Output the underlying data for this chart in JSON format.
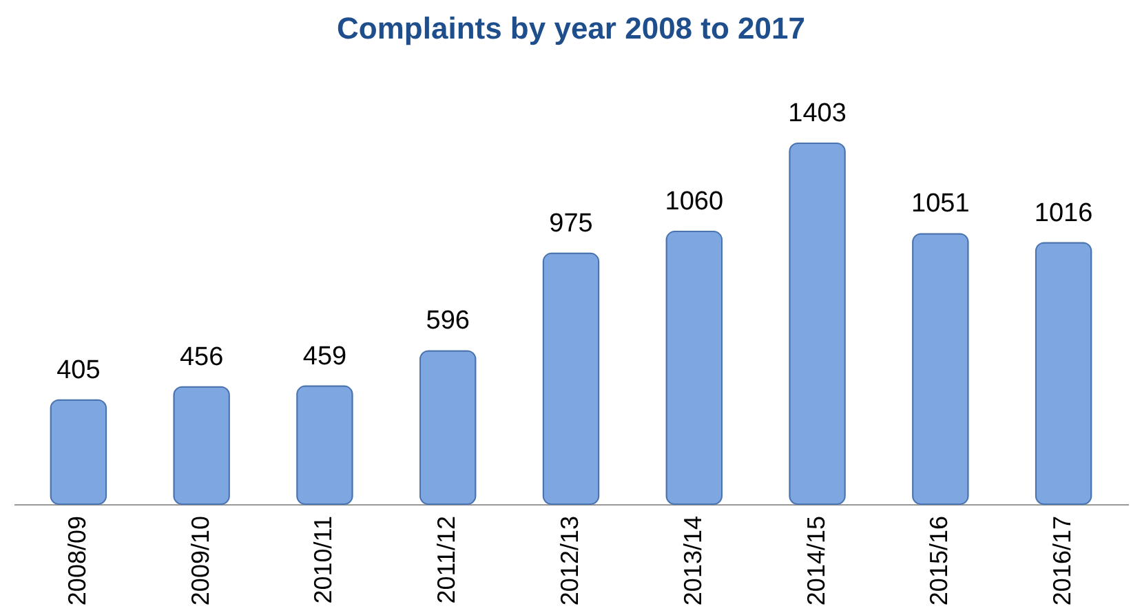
{
  "chart_data": {
    "type": "bar",
    "title": "Complaints by year 2008 to 2017",
    "categories": [
      "2008/09",
      "2009/10",
      "2010/11",
      "2011/12",
      "2012/13",
      "2013/14",
      "2014/15",
      "2015/16",
      "2016/17"
    ],
    "values": [
      405,
      456,
      459,
      596,
      975,
      1060,
      1403,
      1051,
      1016
    ],
    "color": "#7ea6e0",
    "data_labels": true
  }
}
